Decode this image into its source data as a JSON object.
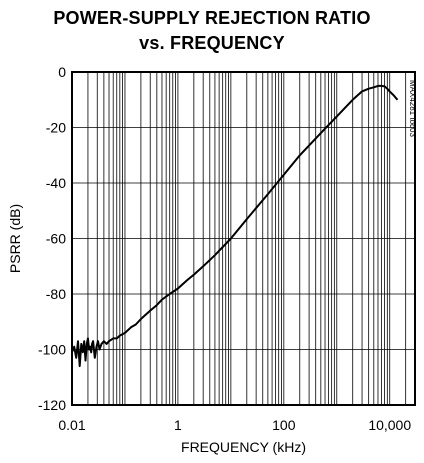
{
  "chart_data": {
    "type": "line",
    "title_line1": "POWER-SUPPLY REJECTION RATIO",
    "title_line2": "vs. FREQUENCY",
    "xlabel": "FREQUENCY (kHz)",
    "ylabel": "PSRR (dB)",
    "x_scale": "log",
    "xlim": [
      0.01,
      30000
    ],
    "ylim": [
      -120,
      0
    ],
    "xticks": [
      {
        "value": 0.01,
        "label": "0.01"
      },
      {
        "value": 1,
        "label": "1"
      },
      {
        "value": 100,
        "label": "100"
      },
      {
        "value": 10000,
        "label": "10,000"
      }
    ],
    "yticks": [
      {
        "value": 0,
        "label": "0"
      },
      {
        "value": -20,
        "label": "-20"
      },
      {
        "value": -40,
        "label": "-40"
      },
      {
        "value": -60,
        "label": "-60"
      },
      {
        "value": -80,
        "label": "-80"
      },
      {
        "value": -100,
        "label": "-100"
      },
      {
        "value": -120,
        "label": "-120"
      }
    ],
    "grid": true,
    "code_label": "MAX4281 toc03",
    "series": [
      {
        "color": "#000000",
        "x": [
          0.01,
          0.011,
          0.012,
          0.013,
          0.014,
          0.015,
          0.016,
          0.017,
          0.018,
          0.019,
          0.02,
          0.021,
          0.022,
          0.023,
          0.024,
          0.025,
          0.027,
          0.029,
          0.031,
          0.033,
          0.036,
          0.04,
          0.045,
          0.05,
          0.06,
          0.07,
          0.08,
          0.1,
          0.13,
          0.16,
          0.2,
          0.3,
          0.4,
          0.5,
          0.7,
          1,
          1.5,
          2,
          3,
          5,
          10,
          20,
          50,
          100,
          200,
          500,
          1000,
          2000,
          3000,
          4000,
          5000,
          6000,
          7000,
          8000,
          9000,
          10000,
          12000,
          14000
        ],
        "y": [
          -101,
          -99,
          -103,
          -97,
          -106,
          -98,
          -101,
          -97,
          -104,
          -98,
          -96,
          -100,
          -99,
          -101,
          -98,
          -97,
          -103,
          -99,
          -97,
          -100,
          -98,
          -97,
          -98,
          -97,
          -96,
          -96,
          -95,
          -94,
          -92,
          -91,
          -89,
          -86,
          -84,
          -82,
          -80,
          -78,
          -75,
          -73,
          -70,
          -66,
          -60,
          -53,
          -44,
          -37,
          -30,
          -22,
          -16,
          -10,
          -7,
          -6,
          -5.5,
          -5,
          -5,
          -5.2,
          -6,
          -7,
          -8.5,
          -10
        ]
      }
    ]
  }
}
